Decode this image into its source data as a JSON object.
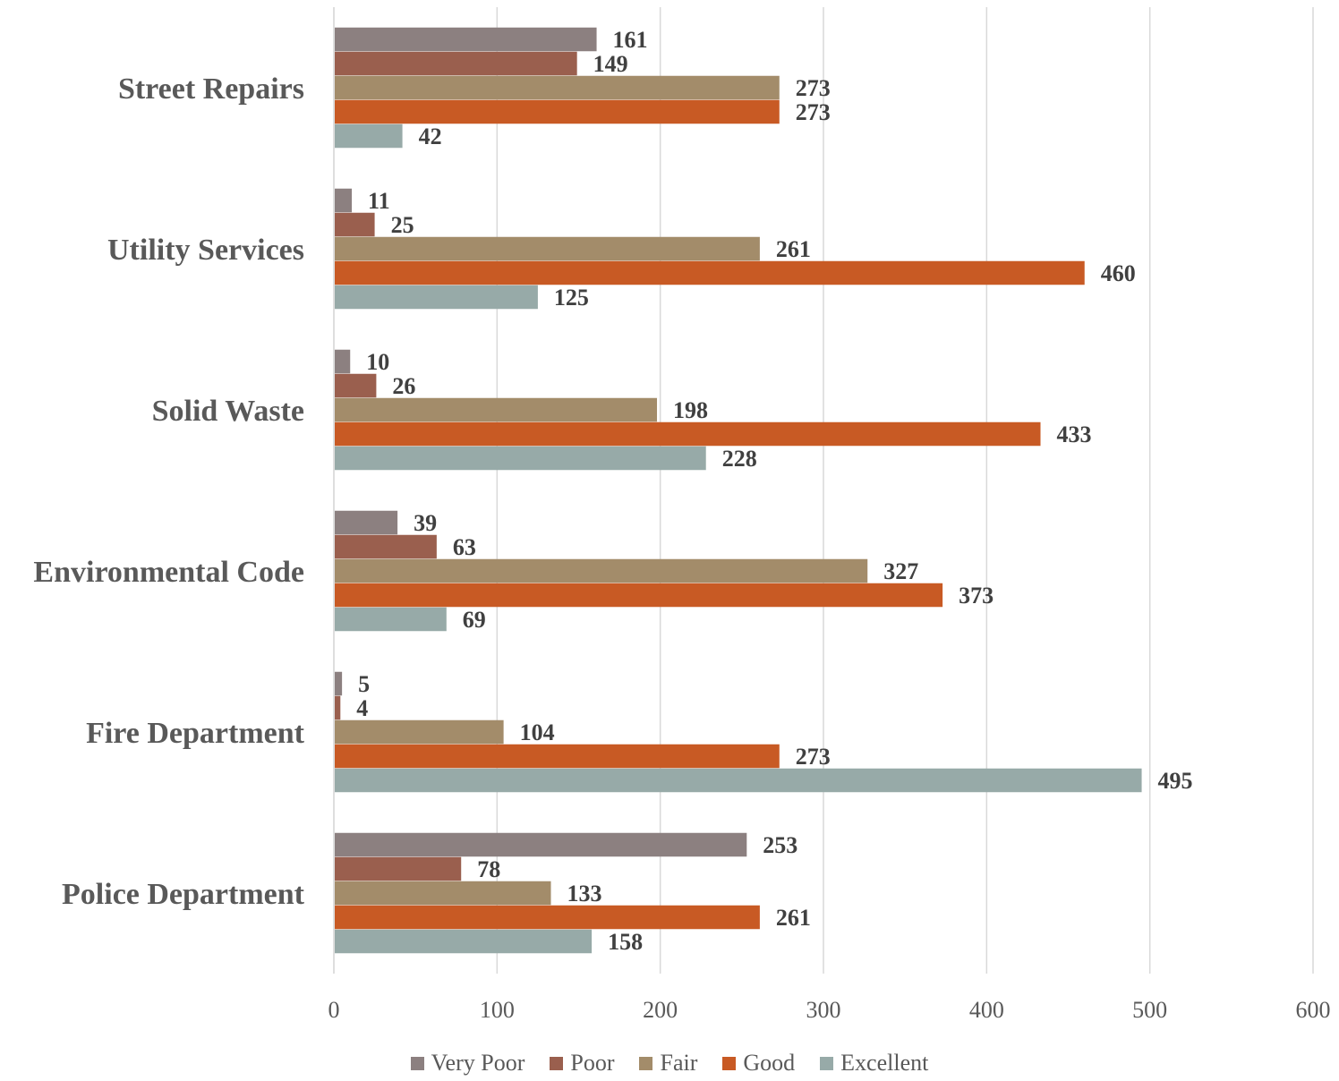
{
  "chart_data": {
    "type": "bar",
    "orientation": "horizontal",
    "categories": [
      "Street Repairs",
      "Utility Services",
      "Solid Waste",
      "Environmental Code",
      "Fire Department",
      "Police Department"
    ],
    "series": [
      {
        "name": "Very Poor",
        "color": "#8c8080",
        "values": [
          161,
          11,
          10,
          39,
          5,
          253
        ]
      },
      {
        "name": "Poor",
        "color": "#9a5f4e",
        "values": [
          149,
          25,
          26,
          63,
          4,
          78
        ]
      },
      {
        "name": "Fair",
        "color": "#a38c6a",
        "values": [
          273,
          261,
          198,
          327,
          104,
          133
        ]
      },
      {
        "name": "Good",
        "color": "#c85a24",
        "values": [
          273,
          460,
          433,
          373,
          273,
          261
        ]
      },
      {
        "name": "Excellent",
        "color": "#97aaa8",
        "values": [
          42,
          125,
          228,
          69,
          495,
          158
        ]
      }
    ],
    "xlim": [
      0,
      600
    ],
    "xticks": [
      "0",
      "100",
      "200",
      "300",
      "400",
      "500",
      "600"
    ],
    "grid": true,
    "legend_position": "bottom",
    "data_labels": true
  }
}
